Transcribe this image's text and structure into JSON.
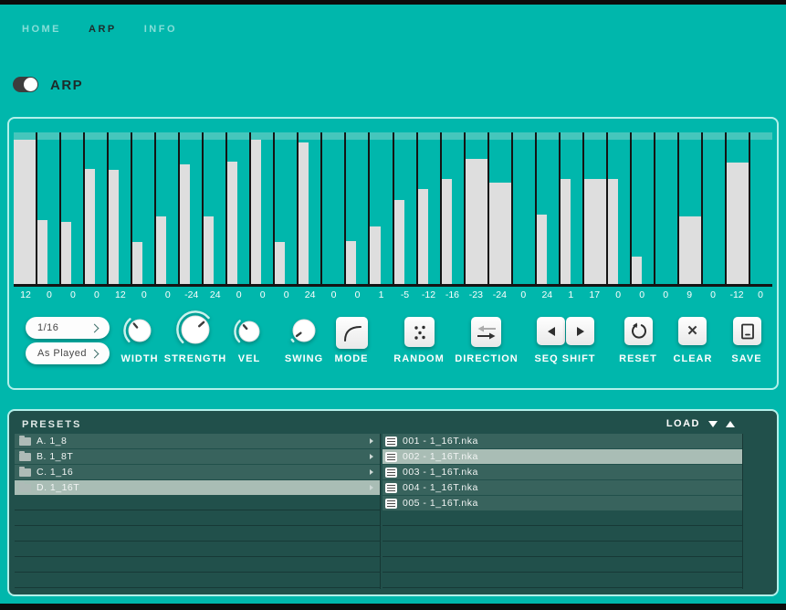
{
  "nav": {
    "items": [
      {
        "label": "HOME",
        "active": false
      },
      {
        "label": "ARP",
        "active": true
      },
      {
        "label": "INFO",
        "active": false
      }
    ]
  },
  "arp_toggle": {
    "label": "ARP",
    "on": true
  },
  "colors": {
    "background_teal": "#00b7ac",
    "panel_border": "#b2f0ea",
    "chart_strip": "#45c6bc",
    "bar_gray": "#dedede",
    "presets_background": "#21504b",
    "row_background": "#38635d",
    "selection_gray_green": "#a9bdb5",
    "dark_text": "#1e2c2b"
  },
  "chart_data": {
    "type": "bar",
    "title": "",
    "xlabel": "",
    "ylabel": "step velocity (bar height) with transpose value labels",
    "step_count": 32,
    "steps": [
      {
        "label": "12",
        "height_pct": 100,
        "wide": true
      },
      {
        "label": "0",
        "height_pct": 44,
        "wide": false
      },
      {
        "label": "0",
        "height_pct": 43,
        "wide": false
      },
      {
        "label": "0",
        "height_pct": 80,
        "wide": false
      },
      {
        "label": "12",
        "height_pct": 79,
        "wide": false
      },
      {
        "label": "0",
        "height_pct": 29,
        "wide": false
      },
      {
        "label": "0",
        "height_pct": 47,
        "wide": false
      },
      {
        "label": "-24",
        "height_pct": 83,
        "wide": false
      },
      {
        "label": "24",
        "height_pct": 47,
        "wide": false
      },
      {
        "label": "0",
        "height_pct": 85,
        "wide": false
      },
      {
        "label": "0",
        "height_pct": 100,
        "wide": false
      },
      {
        "label": "0",
        "height_pct": 29,
        "wide": false
      },
      {
        "label": "24",
        "height_pct": 98,
        "wide": false
      },
      {
        "label": "0",
        "height_pct": 0,
        "wide": false
      },
      {
        "label": "0",
        "height_pct": 30,
        "wide": false
      },
      {
        "label": "1",
        "height_pct": 40,
        "wide": false
      },
      {
        "label": "-5",
        "height_pct": 58,
        "wide": false
      },
      {
        "label": "-12",
        "height_pct": 66,
        "wide": false
      },
      {
        "label": "-16",
        "height_pct": 73,
        "wide": false
      },
      {
        "label": "-23",
        "height_pct": 87,
        "wide": true
      },
      {
        "label": "-24",
        "height_pct": 70,
        "wide": true
      },
      {
        "label": "0",
        "height_pct": 0,
        "wide": false
      },
      {
        "label": "24",
        "height_pct": 48,
        "wide": false
      },
      {
        "label": "1",
        "height_pct": 73,
        "wide": false
      },
      {
        "label": "17",
        "height_pct": 73,
        "wide": true
      },
      {
        "label": "0",
        "height_pct": 73,
        "wide": false
      },
      {
        "label": "0",
        "height_pct": 19,
        "wide": false
      },
      {
        "label": "0",
        "height_pct": 0,
        "wide": false
      },
      {
        "label": "9",
        "height_pct": 47,
        "wide": true
      },
      {
        "label": "0",
        "height_pct": 0,
        "wide": false
      },
      {
        "label": "-12",
        "height_pct": 84,
        "wide": true
      },
      {
        "label": "0",
        "height_pct": 0,
        "wide": false
      }
    ]
  },
  "controls": {
    "rate": {
      "value": "1/16"
    },
    "order": {
      "value": "As Played"
    },
    "knobs": [
      {
        "label": "WIDTH",
        "angle": -40
      },
      {
        "label": "STRENGTH",
        "angle": 48
      },
      {
        "label": "VEL",
        "angle": -42
      },
      {
        "label": "SWING",
        "angle": -127
      }
    ],
    "buttons": {
      "mode": {
        "label": "MODE",
        "icon": "curve-icon"
      },
      "random": {
        "label": "RANDOM",
        "icon": "dice-dots-icon"
      },
      "direction": {
        "label": "DIRECTION",
        "icon": "swap-arrows-icon"
      },
      "seq_shift": {
        "label": "SEQ SHIFT",
        "icon": "left-right-triangle-icons"
      },
      "reset": {
        "label": "RESET",
        "icon": "reset-circular-arrow-icon"
      },
      "clear": {
        "label": "CLEAR",
        "icon": "x-icon",
        "glyph": "✕"
      },
      "save": {
        "label": "SAVE",
        "icon": "file-icon"
      }
    }
  },
  "presets": {
    "title": "PRESETS",
    "load_label": "LOAD",
    "folders": [
      {
        "label": "A. 1_8",
        "selected": false
      },
      {
        "label": "B. 1_8T",
        "selected": false
      },
      {
        "label": "C. 1_16",
        "selected": false
      },
      {
        "label": "D. 1_16T",
        "selected": true
      }
    ],
    "files": [
      {
        "label": "001 - 1_16T.nka",
        "selected": false
      },
      {
        "label": "002 - 1_16T.nka",
        "selected": true
      },
      {
        "label": "003 - 1_16T.nka",
        "selected": false
      },
      {
        "label": "004 - 1_16T.nka",
        "selected": false
      },
      {
        "label": "005 - 1_16T.nka",
        "selected": false
      }
    ],
    "total_rows": 10
  }
}
